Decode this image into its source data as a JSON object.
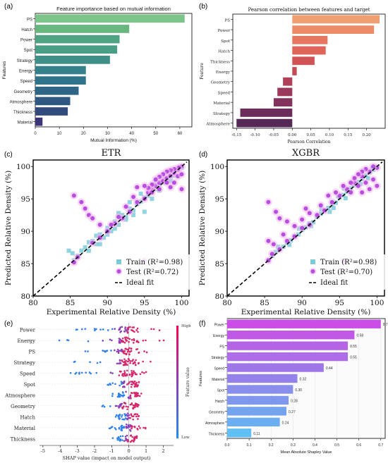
{
  "panel_letters": [
    "(a)",
    "(b)",
    "(c)",
    "(d)",
    "(e)",
    "(f)"
  ],
  "chart_data": [
    {
      "id": "a",
      "type": "bar",
      "orientation": "horizontal",
      "title": "Feature importance based on mutual information",
      "xlabel": "Mutual Information (%)",
      "ylabel": "Features",
      "categories": [
        "PS",
        "Hatch",
        "Power",
        "Spot",
        "Strategy",
        "Energy",
        "Speed",
        "Geometry",
        "Atmosphere",
        "Thickness",
        "Material"
      ],
      "values": [
        62,
        39,
        35,
        34,
        31,
        21,
        21,
        18,
        14.5,
        13.5,
        3
      ],
      "colors": [
        "#7dc48a",
        "#68b77f",
        "#4fa383",
        "#4a9e86",
        "#3f8f89",
        "#34808b",
        "#2f7389",
        "#2d6586",
        "#2e5882",
        "#334a7c",
        "#3c3575"
      ],
      "xticks": [
        0,
        10,
        20,
        30,
        40,
        50,
        60
      ],
      "xlim": [
        0,
        65
      ]
    },
    {
      "id": "b",
      "type": "bar",
      "orientation": "horizontal",
      "title": "Pearson correlation between features and target",
      "xlabel": "Pearson Correlation",
      "ylabel": "Feature",
      "categories": [
        "PS",
        "Power",
        "Spot",
        "Hatch",
        "Thickness",
        "Energy",
        "Geometry",
        "Speed",
        "Material",
        "Strategy",
        "Atmosphere"
      ],
      "values": [
        0.235,
        0.22,
        0.095,
        0.09,
        0.06,
        0.012,
        -0.025,
        -0.04,
        -0.05,
        -0.14,
        -0.15
      ],
      "colors": [
        "#f0a070",
        "#ec8c66",
        "#e8755f",
        "#df6459",
        "#d05355",
        "#c44a56",
        "#b04159",
        "#9b395c",
        "#83325e",
        "#6b2c5c",
        "#552856"
      ],
      "xticks": [
        "-0.15",
        "-0.10",
        "-0.05",
        "0.00",
        "0.05",
        "0.10",
        "0.15",
        "0.20"
      ],
      "xlim": [
        -0.16,
        0.25
      ]
    },
    {
      "id": "c",
      "type": "scatter",
      "title": "ETR",
      "xlabel": "Experimental Relative Density (%)",
      "ylabel": "Predicted Relative Density (%)",
      "xlim": [
        80,
        101
      ],
      "ylim": [
        80,
        101
      ],
      "xticks": [
        "80",
        "85",
        "90",
        "95",
        "100"
      ],
      "yticks": [
        "80",
        "85",
        "90",
        "95",
        "100"
      ],
      "legend": [
        "Train (R²=0.98)",
        "Test (R²=0.72)",
        "Ideal fit"
      ],
      "legend_position": "lower-right",
      "train": [
        [
          85.5,
          85.5
        ],
        [
          86,
          86.2
        ],
        [
          86.5,
          87
        ],
        [
          87,
          87.5
        ],
        [
          87.5,
          87
        ],
        [
          88,
          88.5
        ],
        [
          88.5,
          88
        ],
        [
          89,
          89.5
        ],
        [
          89.5,
          89
        ],
        [
          90,
          90.5
        ],
        [
          90.5,
          90
        ],
        [
          91,
          91.5
        ],
        [
          91.5,
          91
        ],
        [
          92,
          92.5
        ],
        [
          92.5,
          92.2
        ],
        [
          93,
          93.5
        ],
        [
          93.5,
          93.2
        ],
        [
          94,
          94.2
        ],
        [
          94.5,
          94.6
        ],
        [
          95,
          95.2
        ],
        [
          95.5,
          95.5
        ],
        [
          96,
          96.2
        ],
        [
          96.5,
          96.5
        ],
        [
          97,
          97.2
        ],
        [
          97.5,
          97.5
        ],
        [
          98,
          98.2
        ],
        [
          98.5,
          98.5
        ],
        [
          99,
          99.2
        ],
        [
          99.5,
          99.5
        ],
        [
          100,
          99.8
        ],
        [
          84.8,
          87
        ],
        [
          85.3,
          86.6
        ],
        [
          87.5,
          88.3
        ],
        [
          89,
          88
        ],
        [
          90,
          89.5
        ],
        [
          91,
          90.4
        ],
        [
          92.5,
          91.8
        ],
        [
          93,
          94.5
        ],
        [
          94.5,
          95.8
        ],
        [
          96,
          95
        ],
        [
          97,
          96.3
        ],
        [
          95,
          93
        ],
        [
          93.5,
          92.5
        ],
        [
          91.5,
          92.8
        ],
        [
          98.5,
          97.8
        ],
        [
          99,
          98.6
        ],
        [
          96.5,
          97.6
        ],
        [
          97.5,
          98.5
        ],
        [
          88.5,
          89.3
        ]
      ],
      "test": [
        [
          85.5,
          85.2
        ],
        [
          86,
          86
        ],
        [
          88,
          88.2
        ],
        [
          89,
          89
        ],
        [
          90,
          90
        ],
        [
          91,
          91.2
        ],
        [
          92,
          92
        ],
        [
          93,
          93
        ],
        [
          94,
          94.5
        ],
        [
          95,
          95
        ],
        [
          95.5,
          96
        ],
        [
          96,
          96.5
        ],
        [
          96.5,
          97
        ],
        [
          97,
          97.5
        ],
        [
          97.5,
          97.8
        ],
        [
          98,
          98.2
        ],
        [
          98.5,
          98.6
        ],
        [
          99,
          99
        ],
        [
          99.5,
          99.5
        ],
        [
          100,
          100
        ],
        [
          99.6,
          99.8
        ],
        [
          99,
          99.6
        ],
        [
          98.5,
          99.4
        ],
        [
          98,
          99.2
        ],
        [
          97.5,
          98.8
        ],
        [
          97,
          98.4
        ],
        [
          96.5,
          98
        ],
        [
          96,
          97.2
        ],
        [
          95.5,
          96.7
        ],
        [
          85.5,
          95.5
        ],
        [
          86.5,
          94.5
        ],
        [
          87,
          93.5
        ],
        [
          87.5,
          92.5
        ],
        [
          88,
          92
        ],
        [
          89,
          91
        ],
        [
          90.5,
          91
        ],
        [
          91.5,
          92.2
        ],
        [
          92.5,
          93.8
        ],
        [
          93.5,
          95.3
        ],
        [
          94,
          96.8
        ],
        [
          95,
          97
        ],
        [
          96,
          96
        ],
        [
          97,
          96.5
        ],
        [
          98,
          97.5
        ],
        [
          98.5,
          96.8
        ],
        [
          99,
          97.5
        ],
        [
          99.5,
          98.5
        ],
        [
          100,
          98.8
        ],
        [
          100,
          96.5
        ],
        [
          95,
          85.5
        ]
      ]
    },
    {
      "id": "d",
      "type": "scatter",
      "title": "XGBR",
      "xlabel": "Experimental Relative Density (%)",
      "ylabel": "Predicted Relative Density (%)",
      "xlim": [
        80,
        101
      ],
      "ylim": [
        80,
        101
      ],
      "xticks": [
        "80",
        "85",
        "90",
        "95",
        "100"
      ],
      "yticks": [
        "80",
        "85",
        "90",
        "95",
        "100"
      ],
      "legend": [
        "Train (R²=0.98)",
        "Test (R²=0.70)",
        "Ideal fit"
      ],
      "legend_position": "lower-right",
      "train": [
        [
          85.5,
          85.5
        ],
        [
          86,
          86.2
        ],
        [
          86.5,
          86.8
        ],
        [
          87,
          87.3
        ],
        [
          87.5,
          87.6
        ],
        [
          88,
          88.2
        ],
        [
          88.5,
          88.6
        ],
        [
          89,
          89.2
        ],
        [
          89.5,
          89.5
        ],
        [
          90,
          90.2
        ],
        [
          90.5,
          90.6
        ],
        [
          91,
          91.2
        ],
        [
          91.5,
          91.4
        ],
        [
          92,
          92.2
        ],
        [
          92.5,
          92.7
        ],
        [
          93,
          93.2
        ],
        [
          93.5,
          93.6
        ],
        [
          94,
          94.2
        ],
        [
          94.5,
          94.4
        ],
        [
          95,
          95.2
        ],
        [
          95.5,
          95.6
        ],
        [
          96,
          96.1
        ],
        [
          96.5,
          96.6
        ],
        [
          97,
          97.1
        ],
        [
          97.5,
          97.6
        ],
        [
          98,
          98.1
        ],
        [
          98.5,
          98.6
        ],
        [
          99,
          99.1
        ],
        [
          99.5,
          99.5
        ],
        [
          100,
          99.9
        ],
        [
          86.8,
          87.6
        ],
        [
          88.3,
          87.9
        ],
        [
          89.6,
          90.4
        ],
        [
          91.2,
          90.8
        ],
        [
          92.6,
          93.4
        ],
        [
          93.7,
          93
        ],
        [
          94.8,
          95.4
        ],
        [
          95.8,
          95.1
        ],
        [
          96.8,
          97.3
        ],
        [
          97.8,
          97.3
        ],
        [
          95.6,
          96.6
        ],
        [
          94.2,
          93.6
        ],
        [
          98.8,
          98.2
        ],
        [
          99.4,
          99.8
        ]
      ],
      "test": [
        [
          85.5,
          85.5
        ],
        [
          86,
          86.5
        ],
        [
          87,
          87.2
        ],
        [
          88,
          88.5
        ],
        [
          89,
          89.2
        ],
        [
          90,
          90.5
        ],
        [
          91,
          91
        ],
        [
          92,
          92.5
        ],
        [
          93,
          93.2
        ],
        [
          94,
          94.5
        ],
        [
          95,
          95.5
        ],
        [
          96,
          96.5
        ],
        [
          97,
          97.5
        ],
        [
          98,
          98.5
        ],
        [
          99,
          99.2
        ],
        [
          100,
          99.8
        ],
        [
          99.5,
          100
        ],
        [
          98.5,
          99.6
        ],
        [
          98,
          99.2
        ],
        [
          97.5,
          98.8
        ],
        [
          97,
          98.2
        ],
        [
          96.5,
          97.5
        ],
        [
          85.5,
          94.5
        ],
        [
          86.5,
          93
        ],
        [
          87,
          92
        ],
        [
          88,
          91.5
        ],
        [
          89,
          90.8
        ],
        [
          85.5,
          88.5
        ],
        [
          86.2,
          88
        ],
        [
          87.5,
          89.5
        ],
        [
          90,
          91.8
        ],
        [
          91,
          92.8
        ],
        [
          92.5,
          94
        ],
        [
          93.5,
          95.5
        ],
        [
          94.5,
          96
        ],
        [
          95.5,
          97
        ],
        [
          96.5,
          96
        ],
        [
          97.5,
          97
        ],
        [
          98.5,
          97.5
        ],
        [
          99,
          96.5
        ],
        [
          100,
          97
        ],
        [
          99.5,
          98
        ],
        [
          95.5,
          85.5
        ],
        [
          90.5,
          93.5
        ],
        [
          98,
          96
        ]
      ]
    },
    {
      "id": "e",
      "type": "scatter",
      "subtype": "beeswarm",
      "xlabel": "SHAP value (impact on model output)",
      "colorbar_label": "Feature value",
      "colorbar_high": "High",
      "colorbar_low": "Low",
      "features": [
        "Power",
        "Energy",
        "PS",
        "Strategy",
        "Speed",
        "Spot",
        "Atmosphere",
        "Geometry",
        "Hatch",
        "Material",
        "Thickness"
      ],
      "xticks": [
        "-5",
        "-4",
        "-3",
        "-2",
        "-1",
        "0",
        "1",
        "2"
      ],
      "xlim": [
        -5.2,
        2.6
      ],
      "spread": [
        [
          -3.5,
          2.2
        ],
        [
          -4.8,
          2.4
        ],
        [
          -2.8,
          1.2
        ],
        [
          -3.2,
          1.3
        ],
        [
          -3.5,
          1.1
        ],
        [
          -1.3,
          0.7
        ],
        [
          -1.0,
          0.8
        ],
        [
          -2.0,
          0.6
        ],
        [
          -0.8,
          0.6
        ],
        [
          -1.2,
          1.0
        ],
        [
          -1.0,
          0.5
        ]
      ]
    },
    {
      "id": "f",
      "type": "bar",
      "orientation": "horizontal",
      "xlabel": "Mean Absolute Shapley Value",
      "ylabel": "Features",
      "categories": [
        "Power",
        "Energy",
        "PS",
        "Strategy",
        "Speed",
        "Material",
        "Spot",
        "Hatch",
        "Geometry",
        "Atmosphere",
        "Thickness"
      ],
      "values": [
        0.7,
        0.58,
        0.55,
        0.55,
        0.44,
        0.32,
        0.3,
        0.28,
        0.27,
        0.24,
        0.11
      ],
      "labels": [
        "0.70",
        "0.58",
        "0.55",
        "0.55",
        "0.44",
        "0.32",
        "0.30",
        "0.28",
        "0.27",
        "0.24",
        "0.11"
      ],
      "colors": [
        "#c94ee6",
        "#c05ae6",
        "#b664e6",
        "#ad6de6",
        "#a077e8",
        "#9482ea",
        "#898deb",
        "#7f98ed",
        "#74a3ef",
        "#6baef1",
        "#60c0f3"
      ],
      "xticks": [
        "0.0",
        "0.1",
        "0.2",
        "0.3",
        "0.4",
        "0.5",
        "0.6",
        "0.7"
      ],
      "xlim": [
        0,
        0.72
      ]
    }
  ]
}
